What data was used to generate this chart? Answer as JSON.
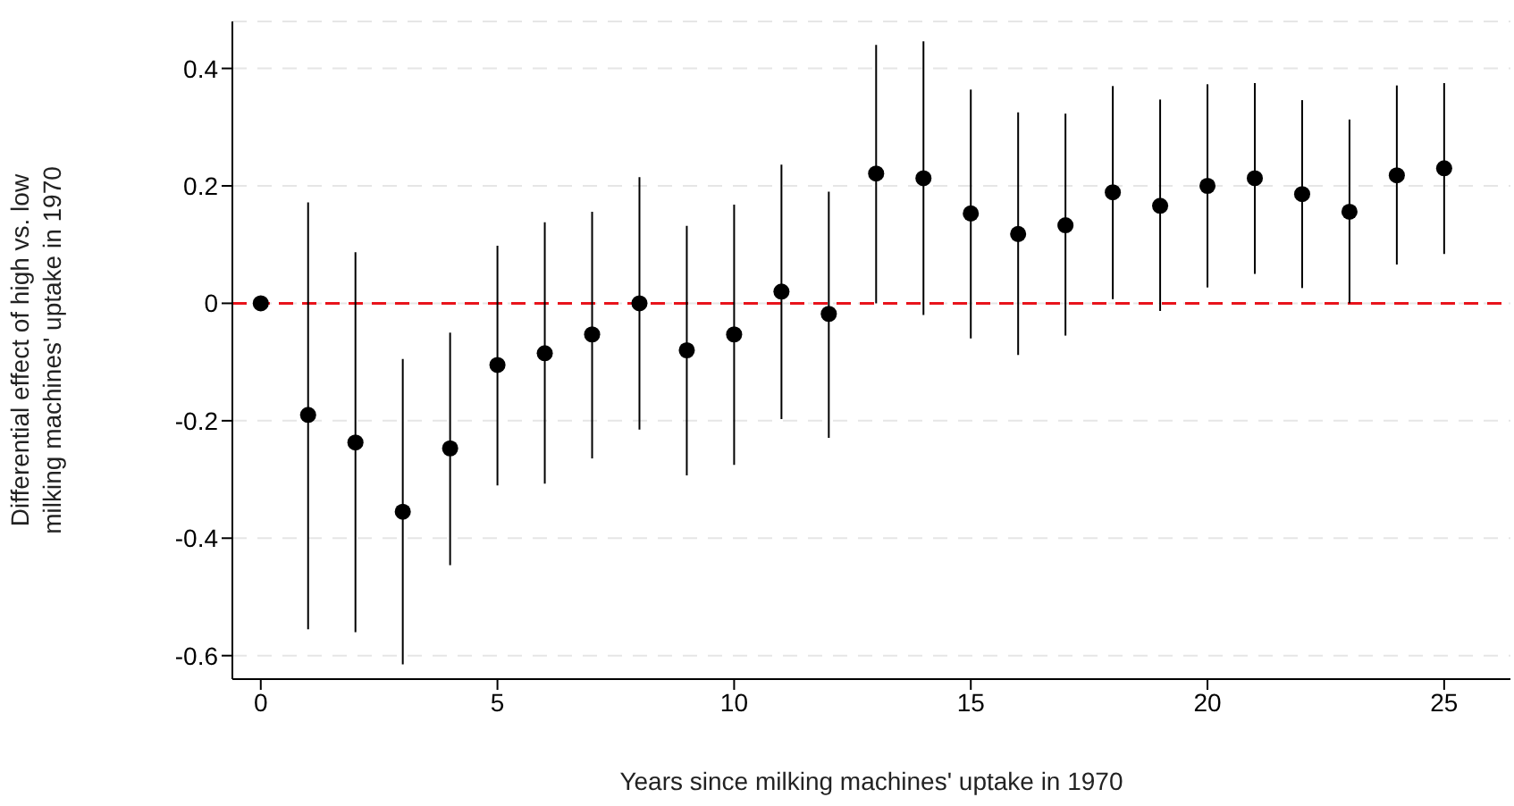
{
  "chart_data": {
    "type": "scatter",
    "xlabel": "Years since milking machines' uptake in 1970",
    "ylabel": "Differential effect of high vs. low\nmilking machines' uptake in 1970",
    "x": [
      0,
      1,
      2,
      3,
      4,
      5,
      6,
      7,
      8,
      9,
      10,
      11,
      12,
      13,
      14,
      15,
      16,
      17,
      18,
      19,
      20,
      21,
      22,
      23,
      24,
      25
    ],
    "series": [
      {
        "color": "#000000",
        "values": [
          0,
          -0.19,
          -0.237,
          -0.355,
          -0.247,
          -0.105,
          -0.085,
          -0.053,
          0,
          -0.08,
          -0.053,
          0.02,
          -0.018,
          0.221,
          0.213,
          0.153,
          0.118,
          0.133,
          0.189,
          0.166,
          0.2,
          0.213,
          0.186,
          0.156,
          0.218,
          0.23
        ],
        "errors": [
          null,
          [
            -0.555,
            0.172
          ],
          [
            -0.56,
            0.087
          ],
          [
            -0.615,
            -0.095
          ],
          [
            -0.446,
            -0.05
          ],
          [
            -0.31,
            0.098
          ],
          [
            -0.307,
            0.138
          ],
          [
            -0.264,
            0.156
          ],
          [
            -0.215,
            0.215
          ],
          [
            -0.293,
            0.132
          ],
          [
            -0.275,
            0.168
          ],
          [
            -0.197,
            0.236
          ],
          [
            -0.229,
            0.19
          ],
          [
            0,
            0.44
          ],
          [
            -0.02,
            0.446
          ],
          [
            -0.06,
            0.364
          ],
          [
            -0.088,
            0.325
          ],
          [
            -0.055,
            0.323
          ],
          [
            0.007,
            0.37
          ],
          [
            -0.013,
            0.347
          ],
          [
            0.027,
            0.373
          ],
          [
            0.05,
            0.375
          ],
          [
            0.026,
            0.346
          ],
          [
            0,
            0.313
          ],
          [
            0.066,
            0.371
          ],
          [
            0.084,
            0.375
          ]
        ]
      }
    ],
    "xlim": [
      -0.6,
      26.4
    ],
    "xticks": [
      0,
      5,
      10,
      15,
      20,
      25
    ],
    "ylim": [
      -0.64,
      0.48
    ],
    "yticks": [
      {
        "value": -0.6,
        "label": "-0.6"
      },
      {
        "value": -0.4,
        "label": "-0.4"
      },
      {
        "value": -0.2,
        "label": "-0.2"
      },
      0,
      {
        "value": 0.2,
        "label": "0.2"
      },
      {
        "value": 0.4,
        "label": "0.4"
      }
    ],
    "ref_lines": [
      {
        "axis": "y",
        "value": 0,
        "color": "#e8141c",
        "line_style": "dashed"
      }
    ],
    "grid": "y",
    "marker": "circle",
    "legend": false
  }
}
